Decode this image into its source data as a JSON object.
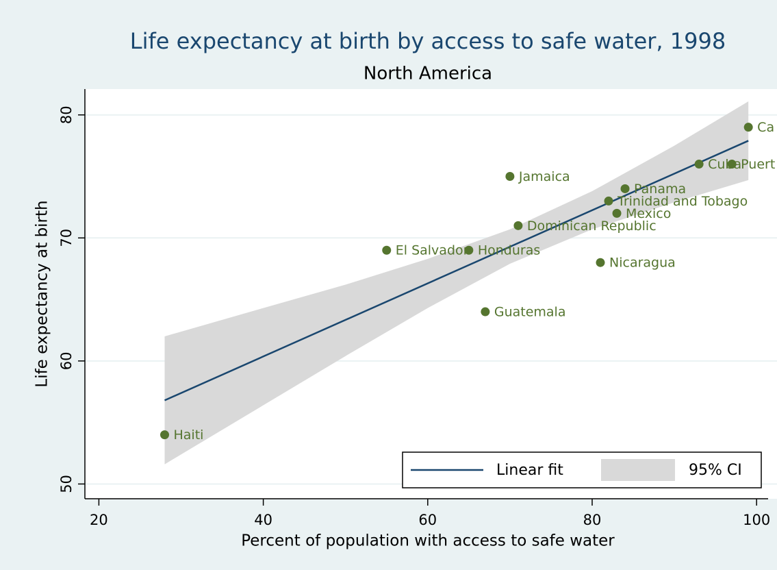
{
  "chart_data": {
    "type": "scatter",
    "title": "Life expectancy at birth by access to safe water, 1998",
    "subtitle": "North America",
    "x_label": "Percent of population with access to safe water",
    "y_label": "Life expectancy at birth",
    "xlim": [
      18.3,
      101.4
    ],
    "ylim": [
      48.8,
      82.1
    ],
    "xticks": [
      20,
      40,
      60,
      80,
      100
    ],
    "yticks": [
      50,
      60,
      70,
      80
    ],
    "grid": true,
    "points": {
      "color": "#55752f",
      "labels": [
        "Haiti",
        "El Salvador",
        "Honduras",
        "Jamaica",
        "Dominican Republic",
        "Guatemala",
        "Nicaragua",
        "Mexico",
        "Trinidad and Tobago",
        "Panama",
        "Cuba",
        "Puert",
        "Ca"
      ],
      "x": [
        28,
        55,
        65,
        70,
        71,
        67,
        81,
        83,
        82,
        84,
        93,
        97,
        99
      ],
      "values": [
        54,
        69,
        69,
        75,
        71,
        64,
        68,
        72,
        73,
        74,
        76,
        76,
        79
      ]
    },
    "fit": {
      "name": "Linear fit",
      "color": "#1a476f",
      "x": [
        28,
        99
      ],
      "values": [
        56.8,
        77.9
      ]
    },
    "ci": {
      "name": "95% CI",
      "color": "#d9d9d9",
      "x": [
        28,
        40,
        50,
        60,
        70,
        80,
        90,
        99
      ],
      "lower": [
        51.6,
        56.4,
        60.4,
        64.3,
        67.9,
        70.7,
        72.9,
        74.7
      ],
      "upper": [
        62.0,
        64.3,
        66.2,
        68.3,
        70.7,
        73.8,
        77.5,
        81.1
      ]
    },
    "legend": "bottom-right"
  }
}
